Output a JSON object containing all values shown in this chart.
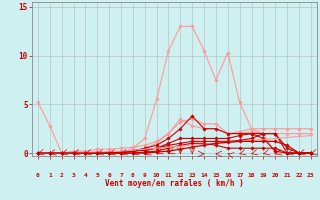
{
  "x": [
    0,
    1,
    2,
    3,
    4,
    5,
    6,
    7,
    8,
    9,
    10,
    11,
    12,
    13,
    14,
    15,
    16,
    17,
    18,
    19,
    20,
    21,
    22,
    23
  ],
  "background_color": "#cff0f0",
  "grid_color": "#aaaaaa",
  "xlabel": "Vent moyen/en rafales ( km/h )",
  "xlabel_color": "#cc0000",
  "tick_color": "#cc0000",
  "yticks": [
    0,
    5,
    10,
    15
  ],
  "ylim": [
    -0.3,
    15.5
  ],
  "xlim": [
    -0.5,
    23.5
  ],
  "lines": [
    {
      "y": [
        5.2,
        2.8,
        0.0,
        0.1,
        0.1,
        0.1,
        0.1,
        0.1,
        0.2,
        0.5,
        1.0,
        2.0,
        3.2,
        3.5,
        3.0,
        3.0,
        2.0,
        2.2,
        2.5,
        2.5,
        2.5,
        2.5,
        2.5,
        2.5
      ],
      "color": "#ff9999",
      "lw": 0.8,
      "marker": "D",
      "ms": 1.8
    },
    {
      "y": [
        0.0,
        0.0,
        0.0,
        0.0,
        0.0,
        0.0,
        0.0,
        0.0,
        0.5,
        1.5,
        5.5,
        10.5,
        13.0,
        13.0,
        10.5,
        7.5,
        10.3,
        5.2,
        2.5,
        2.0,
        0.0,
        0.0,
        0.0,
        0.0
      ],
      "color": "#ff9999",
      "lw": 0.8,
      "marker": "D",
      "ms": 1.8
    },
    {
      "y": [
        0.0,
        0.0,
        0.0,
        0.2,
        0.2,
        0.4,
        0.4,
        0.5,
        0.6,
        0.8,
        1.2,
        2.0,
        3.5,
        2.8,
        2.5,
        2.5,
        2.0,
        2.0,
        2.2,
        2.0,
        2.0,
        2.0,
        2.0,
        2.0
      ],
      "color": "#ff9999",
      "lw": 0.8,
      "marker": "D",
      "ms": 1.8
    },
    {
      "y": [
        0.0,
        0.0,
        0.0,
        0.0,
        0.0,
        0.0,
        0.0,
        0.0,
        0.2,
        0.5,
        0.8,
        1.5,
        2.5,
        3.8,
        2.5,
        2.5,
        2.0,
        2.0,
        2.0,
        2.0,
        2.0,
        0.5,
        0.0,
        0.0
      ],
      "color": "#cc0000",
      "lw": 0.8,
      "marker": "D",
      "ms": 1.8
    },
    {
      "y": [
        0.0,
        0.0,
        0.0,
        0.0,
        0.0,
        0.0,
        0.1,
        0.1,
        0.2,
        0.3,
        0.5,
        1.0,
        1.5,
        1.5,
        1.5,
        1.5,
        1.5,
        1.8,
        2.0,
        1.5,
        0.2,
        0.0,
        0.0,
        0.0
      ],
      "color": "#cc0000",
      "lw": 0.8,
      "marker": "D",
      "ms": 1.8
    },
    {
      "y": [
        0.0,
        0.0,
        0.0,
        0.0,
        0.0,
        0.0,
        0.0,
        0.1,
        0.2,
        0.3,
        0.5,
        0.8,
        1.0,
        1.2,
        1.2,
        1.2,
        1.2,
        1.3,
        1.5,
        2.0,
        2.0,
        0.0,
        0.0,
        0.0
      ],
      "color": "#cc0000",
      "lw": 0.8,
      "marker": "D",
      "ms": 1.8
    },
    {
      "y": [
        0.0,
        0.0,
        0.0,
        0.0,
        0.0,
        0.0,
        0.0,
        0.0,
        0.0,
        0.1,
        0.2,
        0.5,
        0.8,
        1.0,
        1.0,
        0.8,
        0.5,
        0.5,
        0.5,
        0.5,
        0.5,
        0.0,
        0.0,
        0.0
      ],
      "color": "#cc0000",
      "lw": 0.8,
      "marker": "D",
      "ms": 1.8
    },
    {
      "y": [
        0.0,
        0.0,
        0.0,
        0.0,
        0.05,
        0.1,
        0.15,
        0.2,
        0.3,
        0.4,
        0.5,
        0.6,
        0.7,
        0.8,
        0.9,
        1.0,
        1.1,
        1.2,
        1.3,
        1.4,
        1.5,
        1.6,
        1.7,
        1.8
      ],
      "color": "#ff9999",
      "lw": 0.8,
      "marker": null,
      "ms": 0
    },
    {
      "y": [
        0.0,
        0.0,
        0.0,
        0.0,
        0.0,
        0.0,
        0.0,
        0.0,
        0.0,
        0.0,
        0.1,
        0.2,
        0.4,
        0.6,
        0.8,
        1.0,
        1.1,
        1.2,
        1.2,
        1.2,
        1.2,
        0.8,
        0.0,
        0.0
      ],
      "color": "#cc0000",
      "lw": 0.9,
      "marker": "D",
      "ms": 1.8
    }
  ],
  "arrow_angles": [
    225,
    225,
    225,
    225,
    225,
    225,
    225,
    225,
    225,
    225,
    210,
    210,
    180,
    180,
    90,
    270,
    315,
    225,
    225,
    225,
    225,
    225,
    225,
    225
  ]
}
